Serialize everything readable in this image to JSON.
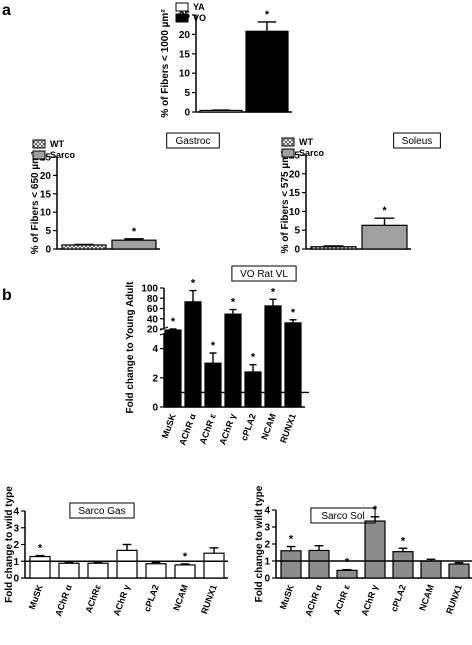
{
  "panel_labels": {
    "a": "a",
    "b": "b"
  },
  "chart_data": [
    {
      "id": "a_top",
      "type": "bar",
      "categories": [
        "YA",
        "VO"
      ],
      "values": [
        0.4,
        20.8
      ],
      "errors": [
        0.1,
        2.4
      ],
      "significance": [
        "",
        "*"
      ],
      "ylabel": "% of Fibers < 1000 µm²",
      "ylim": [
        0,
        25
      ],
      "yticks": [
        0,
        5,
        10,
        15,
        20,
        25
      ],
      "series": [
        {
          "name": "YA",
          "fill": "#ffffff"
        },
        {
          "name": "VO",
          "fill": "#000000"
        }
      ],
      "legend": "top-left"
    },
    {
      "id": "a_gastroc",
      "type": "bar",
      "title": "Gastroc",
      "categories": [
        "WT",
        "Sarco"
      ],
      "values": [
        1.1,
        2.4
      ],
      "errors": [
        0.15,
        0.35
      ],
      "significance": [
        "",
        "*"
      ],
      "ylabel": "% of Fibers < 650 µm²",
      "ylim": [
        0,
        25
      ],
      "yticks": [
        0,
        5,
        10,
        15,
        20,
        25
      ],
      "series": [
        {
          "name": "WT",
          "fill": "hatch"
        },
        {
          "name": "Sarco",
          "fill": "#a0a0a0"
        }
      ],
      "legend": "top-left"
    },
    {
      "id": "a_soleus",
      "type": "bar",
      "title": "Soleus",
      "categories": [
        "WT",
        "Sarco"
      ],
      "values": [
        0.6,
        6.3
      ],
      "errors": [
        0.2,
        1.9
      ],
      "significance": [
        "",
        "*"
      ],
      "ylabel": "% of Fibers < 575 µm²",
      "ylim": [
        0,
        25
      ],
      "yticks": [
        0,
        5,
        10,
        15,
        20,
        25
      ],
      "series": [
        {
          "name": "WT",
          "fill": "hatch"
        },
        {
          "name": "Sarco",
          "fill": "#a0a0a0"
        }
      ],
      "legend": "top-left"
    },
    {
      "id": "b_vo",
      "type": "bar",
      "title": "VO Rat VL",
      "categories": [
        "MuSK",
        "AChR α",
        "AChR ε",
        "AChR γ",
        "cPLA2",
        "NCAM",
        "RUNX1"
      ],
      "values": [
        18,
        73,
        3.0,
        49,
        2.4,
        65,
        32
      ],
      "errors": [
        2,
        22,
        0.7,
        9,
        0.5,
        13,
        6
      ],
      "significance": [
        "*",
        "*",
        "*",
        "*",
        "*",
        "*",
        "*"
      ],
      "ylabel": "Fold change to Young Adult",
      "ylim": [
        0,
        100
      ],
      "axis_break": [
        5,
        20
      ],
      "yticks": [
        0,
        2,
        4,
        20,
        40,
        60,
        80,
        100
      ],
      "reference_line": 1,
      "fill": "#000000"
    },
    {
      "id": "b_sarco_gas",
      "type": "bar",
      "title": "Sarco Gas",
      "categories": [
        "MuSK",
        "AChR α",
        "AChRε",
        "AChR γ",
        "cPLA2",
        "NCAM",
        "RUNX1"
      ],
      "values": [
        1.28,
        0.88,
        0.88,
        1.65,
        0.85,
        0.78,
        1.48
      ],
      "errors": [
        0.06,
        0.04,
        0.05,
        0.35,
        0.08,
        0.06,
        0.32
      ],
      "significance": [
        "*",
        "",
        "",
        "",
        "",
        "*",
        ""
      ],
      "ylabel": "Fold change to wild type",
      "ylim": [
        0,
        4
      ],
      "yticks": [
        0,
        1,
        2,
        3,
        4
      ],
      "reference_line": 1,
      "fill": "#ffffff"
    },
    {
      "id": "b_sarco_sol",
      "type": "bar",
      "title": "Sarco Sol",
      "categories": [
        "MuSK",
        "AChR α",
        "AChR ε",
        "AChR γ",
        "cPLA2",
        "NCAM",
        "RUNX1"
      ],
      "values": [
        1.6,
        1.62,
        0.45,
        3.35,
        1.55,
        1.0,
        0.82
      ],
      "errors": [
        0.25,
        0.28,
        0.04,
        0.25,
        0.2,
        0.1,
        0.08
      ],
      "significance": [
        "*",
        "",
        "*",
        "*",
        "*",
        "",
        ""
      ],
      "ylabel": "Fold change to wild type",
      "ylim": [
        0,
        4
      ],
      "yticks": [
        0,
        1,
        2,
        3,
        4
      ],
      "reference_line": 1,
      "fill": "#8c8c8c"
    }
  ]
}
